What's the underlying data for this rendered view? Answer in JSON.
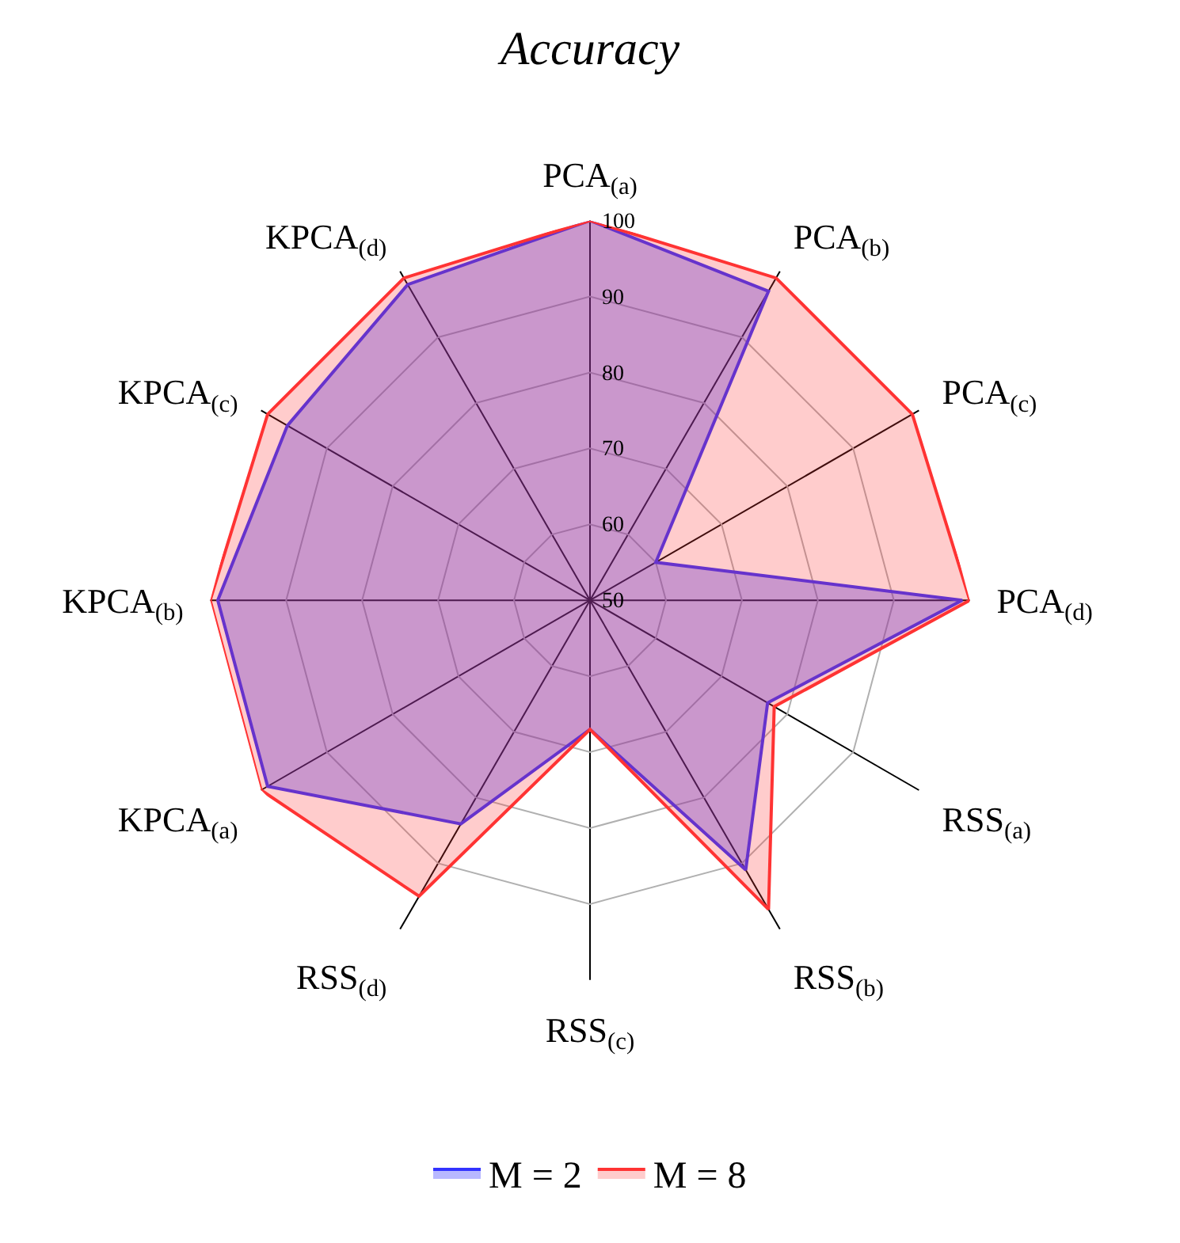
{
  "chart_data": {
    "type": "radar",
    "title": "Accuracy",
    "categories": [
      "PCA$_{(a)}$",
      "PCA$_{(b)}$",
      "PCA$_{(c)}$",
      "PCA$_{(d)}$",
      "RSS$_{(a)}$",
      "RSS$_{(b)}$",
      "RSS$_{(c)}$",
      "RSS$_{(d)}$",
      "KPCA$_{(a)}$",
      "KPCA$_{(b)}$",
      "KPCA$_{(c)}$",
      "KPCA$_{(d)}$"
    ],
    "series": [
      {
        "name": "M = 2",
        "color": "#3333ff",
        "values": [
          100,
          97,
          60,
          99,
          77,
          91,
          67,
          84,
          99,
          99,
          96,
          98
        ]
      },
      {
        "name": "M = 8",
        "color": "#ff3333",
        "values": [
          100,
          99,
          99,
          100,
          78,
          97,
          67,
          95,
          100,
          100,
          99,
          99
        ]
      }
    ],
    "ylim": [
      50,
      100
    ],
    "yticks": [
      50,
      60,
      70,
      80,
      90,
      100
    ],
    "grid": true,
    "legend": "bottom"
  }
}
